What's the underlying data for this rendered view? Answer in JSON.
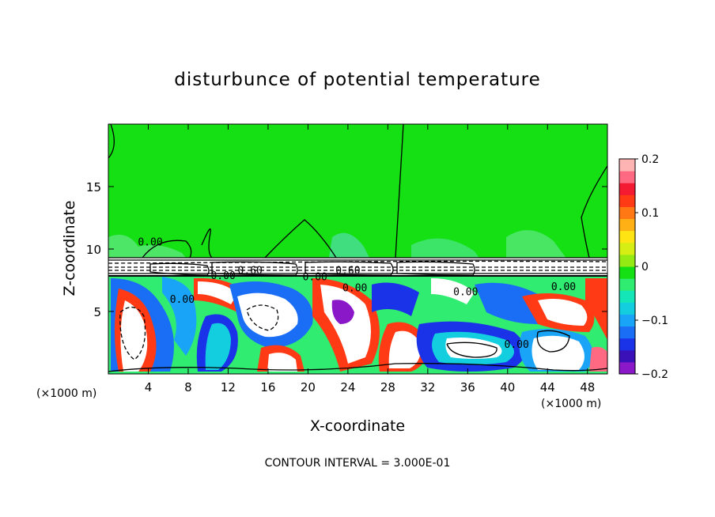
{
  "chart_data": {
    "type": "heatmap",
    "title": "disturbunce of potential temperature",
    "xlabel": "X-coordinate",
    "ylabel": "Z-coordinate",
    "x_unit_note": "(×1000 m)",
    "y_unit_note": "(×1000 m)",
    "footer": "CONTOUR INTERVAL = 3.000E-01",
    "xlim": [
      0,
      50
    ],
    "ylim": [
      0,
      20
    ],
    "x_ticks": [
      4,
      8,
      12,
      16,
      20,
      24,
      28,
      32,
      36,
      40,
      44,
      48
    ],
    "y_ticks": [
      5,
      10,
      15
    ],
    "colorbar": {
      "min": -0.2,
      "max": 0.2,
      "tick_values": [
        0.2,
        0.1,
        0,
        -0.1,
        -0.2
      ],
      "tick_labels": [
        "0.2",
        "0.1",
        "0",
        "−0.1",
        "−0.2"
      ],
      "colors": [
        "#8a18c8",
        "#3a10b8",
        "#1a32e8",
        "#1a6ef6",
        "#1aa4f8",
        "#12cede",
        "#14e6b8",
        "#30ec70",
        "#14e014",
        "#96ea14",
        "#d6ee14",
        "#ffe414",
        "#ffb014",
        "#ff7814",
        "#ff3a14",
        "#f41a32",
        "#ff6a82",
        "#ffb4b4"
      ]
    },
    "contour_labels": [
      {
        "text": "0.00",
        "x": 4.2,
        "z": 10.3
      },
      {
        "text": "0.00",
        "x": 11.5,
        "z": 7.6
      },
      {
        "text": "0.60",
        "x": 14.2,
        "z": 8.0
      },
      {
        "text": "0.00",
        "x": 20.7,
        "z": 7.5
      },
      {
        "text": "0.60",
        "x": 24.0,
        "z": 8.0
      },
      {
        "text": "0.00",
        "x": 24.7,
        "z": 6.6
      },
      {
        "text": "0.00",
        "x": 7.4,
        "z": 5.7
      },
      {
        "text": "0.00",
        "x": 35.8,
        "z": 6.3
      },
      {
        "text": "0.00",
        "x": 40.9,
        "z": 2.1
      },
      {
        "text": "0.00",
        "x": 45.6,
        "z": 6.7
      }
    ]
  }
}
